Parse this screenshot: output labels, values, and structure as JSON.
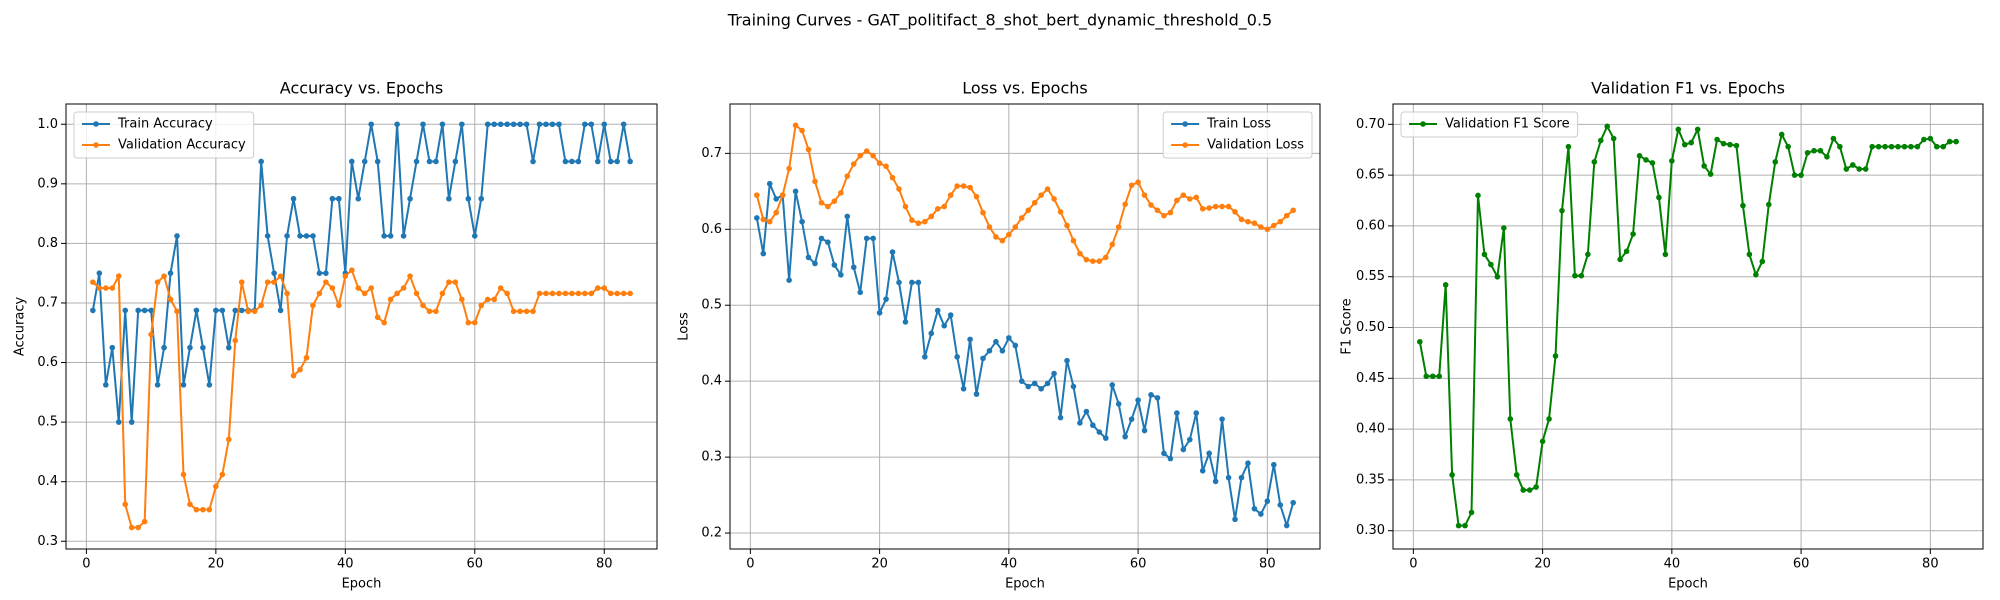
{
  "title": "Training Curves - GAT_politifact_8_shot_bert_dynamic_threshold_0.5",
  "chart_data": [
    {
      "type": "line",
      "title": "Accuracy vs. Epochs",
      "x_label": "Epoch",
      "y_label": "Accuracy",
      "x": [
        1,
        2,
        3,
        4,
        5,
        6,
        7,
        8,
        9,
        10,
        11,
        12,
        13,
        14,
        15,
        16,
        17,
        18,
        19,
        20,
        21,
        22,
        23,
        24,
        25,
        26,
        27,
        28,
        29,
        30,
        31,
        32,
        33,
        34,
        35,
        36,
        37,
        38,
        39,
        40,
        41,
        42,
        43,
        44,
        45,
        46,
        47,
        48,
        49,
        50,
        51,
        52,
        53,
        54,
        55,
        56,
        57,
        58,
        59,
        60,
        61,
        62,
        63,
        64,
        65,
        66,
        67,
        68,
        69,
        70,
        71,
        72,
        73,
        74,
        75,
        76,
        77,
        78,
        79,
        80,
        81,
        82,
        83,
        84
      ],
      "series": [
        {
          "name": "Train Accuracy",
          "color": "#1f77b4",
          "values": [
            0.6875,
            0.75,
            0.5625,
            0.625,
            0.5,
            0.6875,
            0.5,
            0.6875,
            0.6875,
            0.6875,
            0.5625,
            0.625,
            0.75,
            0.8125,
            0.5625,
            0.625,
            0.6875,
            0.625,
            0.5625,
            0.6875,
            0.6875,
            0.625,
            0.6875,
            0.6875,
            0.6875,
            0.6875,
            0.9375,
            0.8125,
            0.75,
            0.6875,
            0.8125,
            0.875,
            0.8125,
            0.8125,
            0.8125,
            0.75,
            0.75,
            0.875,
            0.875,
            0.75,
            0.9375,
            0.875,
            0.9375,
            1.0,
            0.9375,
            0.8125,
            0.8125,
            1.0,
            0.8125,
            0.875,
            0.9375,
            1.0,
            0.9375,
            0.9375,
            1.0,
            0.875,
            0.9375,
            1.0,
            0.875,
            0.8125,
            0.875,
            1.0,
            1.0,
            1.0,
            1.0,
            1.0,
            1.0,
            1.0,
            0.9375,
            1.0,
            1.0,
            1.0,
            1.0,
            0.9375,
            0.9375,
            0.9375,
            1.0,
            1.0,
            0.9375,
            1.0,
            0.9375,
            0.9375,
            1.0,
            0.9375
          ]
        },
        {
          "name": "Validation Accuracy",
          "color": "#ff7f0e",
          "values": [
            0.735,
            0.725,
            0.725,
            0.725,
            0.745,
            0.362,
            0.323,
            0.323,
            0.333,
            0.647,
            0.735,
            0.745,
            0.706,
            0.686,
            0.412,
            0.362,
            0.353,
            0.353,
            0.353,
            0.392,
            0.412,
            0.471,
            0.637,
            0.735,
            0.686,
            0.686,
            0.696,
            0.735,
            0.735,
            0.745,
            0.716,
            0.578,
            0.588,
            0.608,
            0.696,
            0.716,
            0.735,
            0.725,
            0.696,
            0.745,
            0.755,
            0.725,
            0.716,
            0.725,
            0.676,
            0.667,
            0.706,
            0.716,
            0.725,
            0.745,
            0.716,
            0.696,
            0.686,
            0.686,
            0.716,
            0.735,
            0.735,
            0.706,
            0.667,
            0.667,
            0.696,
            0.706,
            0.706,
            0.725,
            0.716,
            0.686,
            0.686,
            0.686,
            0.686,
            0.716,
            0.716,
            0.716,
            0.716,
            0.716,
            0.716,
            0.716,
            0.716,
            0.716,
            0.725,
            0.725,
            0.716,
            0.716,
            0.716,
            0.716
          ]
        }
      ],
      "xlim": [
        -3.15,
        88.15
      ],
      "xticks": [
        0,
        20,
        40,
        60,
        80
      ],
      "ylim": [
        0.287,
        1.034
      ],
      "yticks": [
        0.3,
        0.4,
        0.5,
        0.6,
        0.7,
        0.8,
        0.9,
        {
          "value": 1.0,
          "label": "1.0"
        }
      ],
      "grid": true,
      "legend": "upper left"
    },
    {
      "type": "line",
      "title": "Loss vs. Epochs",
      "x_label": "Epoch",
      "y_label": "Loss",
      "x": [
        1,
        2,
        3,
        4,
        5,
        6,
        7,
        8,
        9,
        10,
        11,
        12,
        13,
        14,
        15,
        16,
        17,
        18,
        19,
        20,
        21,
        22,
        23,
        24,
        25,
        26,
        27,
        28,
        29,
        30,
        31,
        32,
        33,
        34,
        35,
        36,
        37,
        38,
        39,
        40,
        41,
        42,
        43,
        44,
        45,
        46,
        47,
        48,
        49,
        50,
        51,
        52,
        53,
        54,
        55,
        56,
        57,
        58,
        59,
        60,
        61,
        62,
        63,
        64,
        65,
        66,
        67,
        68,
        69,
        70,
        71,
        72,
        73,
        74,
        75,
        76,
        77,
        78,
        79,
        80,
        81,
        82,
        83,
        84
      ],
      "series": [
        {
          "name": "Train Loss",
          "color": "#1f77b4",
          "values": [
            0.615,
            0.568,
            0.66,
            0.64,
            0.645,
            0.533,
            0.65,
            0.61,
            0.563,
            0.555,
            0.588,
            0.583,
            0.553,
            0.54,
            0.617,
            0.55,
            0.517,
            0.588,
            0.588,
            0.49,
            0.508,
            0.57,
            0.53,
            0.478,
            0.53,
            0.53,
            0.432,
            0.463,
            0.493,
            0.473,
            0.487,
            0.432,
            0.39,
            0.455,
            0.383,
            0.43,
            0.44,
            0.452,
            0.44,
            0.457,
            0.447,
            0.4,
            0.393,
            0.397,
            0.39,
            0.397,
            0.41,
            0.352,
            0.427,
            0.393,
            0.345,
            0.36,
            0.342,
            0.333,
            0.325,
            0.395,
            0.37,
            0.327,
            0.35,
            0.375,
            0.335,
            0.382,
            0.378,
            0.305,
            0.298,
            0.358,
            0.31,
            0.323,
            0.358,
            0.282,
            0.305,
            0.268,
            0.35,
            0.273,
            0.218,
            0.273,
            0.292,
            0.232,
            0.225,
            0.242,
            0.29,
            0.237,
            0.21,
            0.24
          ]
        },
        {
          "name": "Validation Loss",
          "color": "#ff7f0e",
          "values": [
            0.645,
            0.613,
            0.61,
            0.622,
            0.645,
            0.68,
            0.737,
            0.73,
            0.705,
            0.663,
            0.635,
            0.63,
            0.637,
            0.648,
            0.67,
            0.686,
            0.697,
            0.703,
            0.697,
            0.687,
            0.683,
            0.668,
            0.653,
            0.63,
            0.612,
            0.608,
            0.61,
            0.617,
            0.627,
            0.63,
            0.645,
            0.657,
            0.657,
            0.655,
            0.643,
            0.622,
            0.603,
            0.59,
            0.585,
            0.593,
            0.603,
            0.615,
            0.625,
            0.635,
            0.645,
            0.653,
            0.64,
            0.623,
            0.605,
            0.585,
            0.568,
            0.56,
            0.558,
            0.558,
            0.563,
            0.58,
            0.603,
            0.633,
            0.658,
            0.662,
            0.645,
            0.632,
            0.625,
            0.618,
            0.622,
            0.638,
            0.645,
            0.64,
            0.642,
            0.627,
            0.628,
            0.63,
            0.63,
            0.63,
            0.623,
            0.613,
            0.61,
            0.608,
            0.603,
            0.6,
            0.605,
            0.61,
            0.618,
            0.625
          ]
        }
      ],
      "xlim": [
        -3.15,
        88.15
      ],
      "xticks": [
        0,
        20,
        40,
        60,
        80
      ],
      "ylim": [
        0.179,
        0.765
      ],
      "yticks": [
        0.2,
        0.3,
        0.4,
        0.5,
        0.6,
        0.7
      ],
      "grid": true,
      "legend": "upper right"
    },
    {
      "type": "line",
      "title": "Validation F1 vs. Epochs",
      "x_label": "Epoch",
      "y_label": "F1 Score",
      "x": [
        1,
        2,
        3,
        4,
        5,
        6,
        7,
        8,
        9,
        10,
        11,
        12,
        13,
        14,
        15,
        16,
        17,
        18,
        19,
        20,
        21,
        22,
        23,
        24,
        25,
        26,
        27,
        28,
        29,
        30,
        31,
        32,
        33,
        34,
        35,
        36,
        37,
        38,
        39,
        40,
        41,
        42,
        43,
        44,
        45,
        46,
        47,
        48,
        49,
        50,
        51,
        52,
        53,
        54,
        55,
        56,
        57,
        58,
        59,
        60,
        61,
        62,
        63,
        64,
        65,
        66,
        67,
        68,
        69,
        70,
        71,
        72,
        73,
        74,
        75,
        76,
        77,
        78,
        79,
        80,
        81,
        82,
        83,
        84
      ],
      "series": [
        {
          "name": "Validation F1 Score",
          "color": "#008000",
          "values": [
            0.486,
            0.452,
            0.452,
            0.452,
            0.542,
            0.355,
            0.305,
            0.305,
            0.318,
            0.63,
            0.572,
            0.562,
            0.55,
            0.598,
            0.41,
            0.355,
            0.34,
            0.34,
            0.343,
            0.388,
            0.41,
            0.472,
            0.615,
            0.678,
            0.551,
            0.551,
            0.572,
            0.663,
            0.684,
            0.698,
            0.686,
            0.567,
            0.575,
            0.592,
            0.669,
            0.665,
            0.662,
            0.628,
            0.572,
            0.664,
            0.695,
            0.68,
            0.682,
            0.695,
            0.659,
            0.651,
            0.685,
            0.681,
            0.68,
            0.679,
            0.62,
            0.572,
            0.552,
            0.565,
            0.621,
            0.663,
            0.69,
            0.678,
            0.65,
            0.65,
            0.672,
            0.674,
            0.674,
            0.668,
            0.686,
            0.678,
            0.656,
            0.66,
            0.656,
            0.656,
            0.678,
            0.678,
            0.678,
            0.678,
            0.678,
            0.678,
            0.678,
            0.678,
            0.685,
            0.686,
            0.678,
            0.678,
            0.683,
            0.683
          ]
        }
      ],
      "xlim": [
        -3.15,
        88.15
      ],
      "xticks": [
        0,
        20,
        40,
        60,
        80
      ],
      "ylim": [
        0.282,
        0.72
      ],
      "yticks": [
        {
          "value": 0.3,
          "label": "0.30"
        },
        0.35,
        {
          "value": 0.4,
          "label": "0.40"
        },
        0.45,
        {
          "value": 0.5,
          "label": "0.50"
        },
        0.55,
        {
          "value": 0.6,
          "label": "0.60"
        },
        0.65,
        {
          "value": 0.7,
          "label": "0.70"
        }
      ],
      "grid": true,
      "legend": "upper left"
    }
  ]
}
